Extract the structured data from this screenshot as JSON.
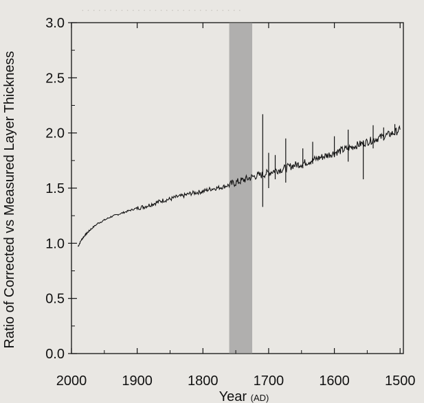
{
  "chart_data": {
    "type": "line",
    "xlabel": "Year",
    "xlabel_unit": "(AD)",
    "ylabel": "Ratio of Corrected vs Measured Layer Thickness",
    "xlim": [
      2000,
      1495
    ],
    "ylim": [
      0.0,
      3.0
    ],
    "x_reversed": true,
    "x_ticks": [
      "2000",
      "1900",
      "1800",
      "1700",
      "1600",
      "1500"
    ],
    "y_ticks": [
      "0.0",
      "0.5",
      "1.0",
      "1.5",
      "2.0",
      "2.5",
      "3.0"
    ],
    "shaded_band": {
      "from": 1760,
      "to": 1725,
      "color": "#8a8a8a"
    },
    "grid": false,
    "series": [
      {
        "x": [
          1990,
          1985,
          1980,
          1975,
          1970,
          1960,
          1950,
          1940,
          1930,
          1920,
          1910,
          1900,
          1890,
          1880,
          1870,
          1860,
          1850,
          1840,
          1830,
          1820,
          1810,
          1800,
          1790,
          1780,
          1770,
          1760,
          1750,
          1740,
          1730,
          1720,
          1710,
          1700,
          1690,
          1680,
          1670,
          1660,
          1650,
          1640,
          1630,
          1620,
          1610,
          1600,
          1590,
          1580,
          1570,
          1560,
          1550,
          1540,
          1530,
          1520,
          1510,
          1500
        ],
        "values": [
          0.97,
          1.03,
          1.07,
          1.1,
          1.13,
          1.18,
          1.21,
          1.24,
          1.26,
          1.28,
          1.3,
          1.32,
          1.33,
          1.35,
          1.37,
          1.39,
          1.4,
          1.42,
          1.43,
          1.45,
          1.46,
          1.47,
          1.49,
          1.5,
          1.51,
          1.53,
          1.55,
          1.57,
          1.59,
          1.61,
          1.62,
          1.64,
          1.66,
          1.67,
          1.69,
          1.71,
          1.72,
          1.74,
          1.76,
          1.78,
          1.8,
          1.82,
          1.84,
          1.86,
          1.88,
          1.9,
          1.92,
          1.94,
          1.96,
          1.98,
          2.0,
          2.03
        ]
      }
    ],
    "spikes": [
      {
        "x": 1709,
        "low": 1.33,
        "high": 2.17
      },
      {
        "x": 1700,
        "low": 1.5,
        "high": 1.82
      },
      {
        "x": 1690,
        "low": 1.58,
        "high": 1.8
      },
      {
        "x": 1674,
        "low": 1.55,
        "high": 1.95
      },
      {
        "x": 1648,
        "low": 1.68,
        "high": 1.86
      },
      {
        "x": 1633,
        "low": 1.72,
        "high": 1.92
      },
      {
        "x": 1600,
        "low": 1.78,
        "high": 1.97
      },
      {
        "x": 1579,
        "low": 1.74,
        "high": 2.03
      },
      {
        "x": 1556,
        "low": 1.58,
        "high": 1.92
      },
      {
        "x": 1541,
        "low": 1.86,
        "high": 2.07
      },
      {
        "x": 1525,
        "low": 1.96,
        "high": 2.05
      },
      {
        "x": 1508,
        "low": 1.98,
        "high": 2.08
      }
    ]
  }
}
